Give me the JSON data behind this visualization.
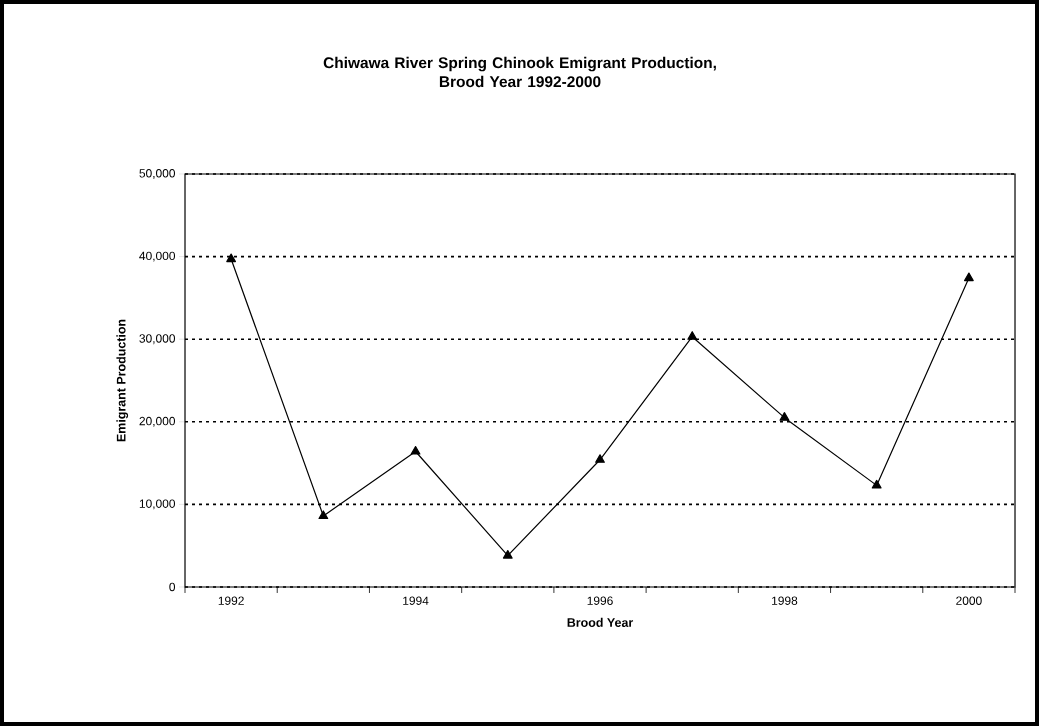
{
  "chart_data": {
    "type": "line",
    "title": "Chiwawa River Spring Chinook Emigrant Production,\nBrood Year 1992-2000",
    "xlabel": "Brood Year",
    "ylabel": "Emigrant Production",
    "categories": [
      "1992",
      null,
      "1994",
      null,
      "1996",
      null,
      "1998",
      null,
      "2000"
    ],
    "series": [
      {
        "color": "#000000",
        "values": [
          39700,
          8600,
          16400,
          3800,
          15400,
          30300,
          20500,
          12300,
          37400
        ]
      }
    ],
    "ylim": [
      0,
      50000
    ],
    "yticks": [
      {
        "value": 0,
        "label": "0"
      },
      {
        "value": 10000,
        "label": "10,000"
      },
      {
        "value": 20000,
        "label": "20,000"
      },
      {
        "value": 30000,
        "label": "30,000"
      },
      {
        "value": 40000,
        "label": "40,000"
      },
      {
        "value": 50000,
        "label": "50,000"
      }
    ],
    "grid": "y",
    "legend": false,
    "marker": "triangle",
    "line_style": "solid"
  }
}
